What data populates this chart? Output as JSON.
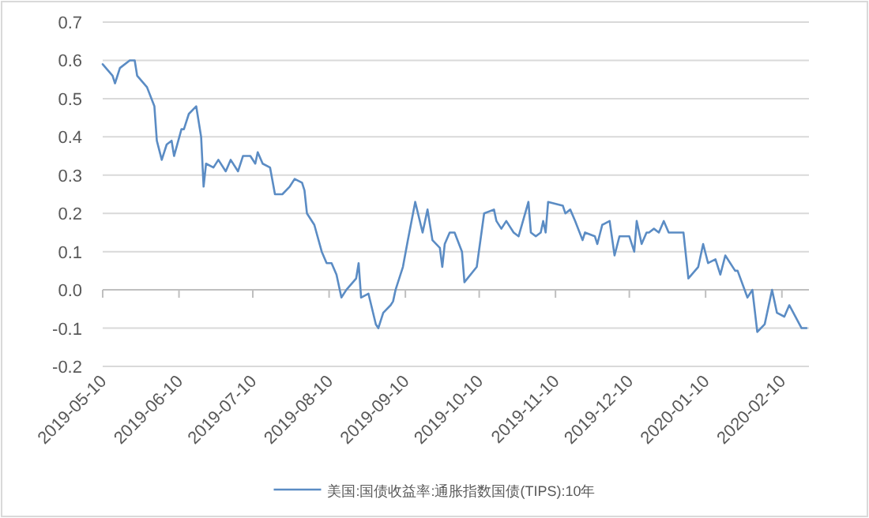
{
  "chart_data": {
    "type": "line",
    "legend": "bottom",
    "grid": "y",
    "marker": "none",
    "line_style": "solid",
    "xlim": [
      "2019-05-10",
      "2020-02-21"
    ],
    "xticks": [
      "2019-05-10",
      "2019-06-10",
      "2019-07-10",
      "2019-08-10",
      "2019-09-10",
      "2019-10-10",
      "2019-11-10",
      "2019-12-10",
      "2020-01-10",
      "2020-02-10"
    ],
    "ylim": [
      -0.2,
      0.7
    ],
    "yticks": [
      -0.2,
      -0.1,
      {
        "value": 0,
        "label": "0.0"
      },
      0.1,
      0.2,
      0.3,
      0.4,
      0.5,
      0.6,
      0.7
    ],
    "x": [
      "2019-05-10",
      "2019-05-14",
      "2019-05-15",
      "2019-05-17",
      "2019-05-21",
      "2019-05-23",
      "2019-05-24",
      "2019-05-28",
      "2019-05-31",
      "2019-06-01",
      "2019-06-03",
      "2019-06-05",
      "2019-06-07",
      "2019-06-08",
      "2019-06-11",
      "2019-06-12",
      "2019-06-14",
      "2019-06-17",
      "2019-06-19",
      "2019-06-20",
      "2019-06-21",
      "2019-06-24",
      "2019-06-26",
      "2019-06-29",
      "2019-07-01",
      "2019-07-04",
      "2019-07-06",
      "2019-07-09",
      "2019-07-11",
      "2019-07-12",
      "2019-07-14",
      "2019-07-17",
      "2019-07-19",
      "2019-07-22",
      "2019-07-25",
      "2019-07-27",
      "2019-07-30",
      "2019-07-31",
      "2019-08-01",
      "2019-08-04",
      "2019-08-07",
      "2019-08-09",
      "2019-08-11",
      "2019-08-13",
      "2019-08-15",
      "2019-08-17",
      "2019-08-21",
      "2019-08-22",
      "2019-08-23",
      "2019-08-26",
      "2019-08-29",
      "2019-08-30",
      "2019-09-01",
      "2019-09-04",
      "2019-09-05",
      "2019-09-06",
      "2019-09-09",
      "2019-09-11",
      "2019-09-14",
      "2019-09-17",
      "2019-09-19",
      "2019-09-21",
      "2019-09-24",
      "2019-09-25",
      "2019-09-26",
      "2019-09-28",
      "2019-09-30",
      "2019-10-03",
      "2019-10-04",
      "2019-10-09",
      "2019-10-12",
      "2019-10-16",
      "2019-10-17",
      "2019-10-19",
      "2019-10-21",
      "2019-10-24",
      "2019-10-26",
      "2019-10-30",
      "2019-10-31",
      "2019-11-02",
      "2019-11-04",
      "2019-11-05",
      "2019-11-06",
      "2019-11-07",
      "2019-11-13",
      "2019-11-14",
      "2019-11-16",
      "2019-11-18",
      "2019-11-21",
      "2019-11-22",
      "2019-11-26",
      "2019-11-27",
      "2019-11-29",
      "2019-12-02",
      "2019-12-04",
      "2019-12-06",
      "2019-12-10",
      "2019-12-12",
      "2019-12-13",
      "2019-12-15",
      "2019-12-17",
      "2019-12-18",
      "2019-12-20",
      "2019-12-22",
      "2019-12-24",
      "2019-12-26",
      "2019-12-28",
      "2020-01-01",
      "2020-01-03",
      "2020-01-07",
      "2020-01-09",
      "2020-01-11",
      "2020-01-14",
      "2020-01-16",
      "2020-01-18",
      "2020-01-22",
      "2020-01-23",
      "2020-01-27",
      "2020-01-29",
      "2020-01-31",
      "2020-02-03",
      "2020-02-06",
      "2020-02-08",
      "2020-02-11",
      "2020-02-13",
      "2020-02-18",
      "2020-02-20"
    ],
    "series": [
      {
        "name": "美国:国债收益率:通胀指数国债(TIPS):10年",
        "color": "#5b8cc4",
        "values": [
          0.59,
          0.56,
          0.54,
          0.58,
          0.6,
          0.6,
          0.56,
          0.53,
          0.48,
          0.39,
          0.34,
          0.38,
          0.39,
          0.35,
          0.42,
          0.42,
          0.46,
          0.48,
          0.4,
          0.27,
          0.33,
          0.32,
          0.34,
          0.31,
          0.34,
          0.31,
          0.35,
          0.35,
          0.33,
          0.36,
          0.33,
          0.32,
          0.25,
          0.25,
          0.27,
          0.29,
          0.28,
          0.26,
          0.2,
          0.17,
          0.1,
          0.07,
          0.07,
          0.04,
          -0.02,
          0.0,
          0.03,
          0.07,
          -0.02,
          -0.01,
          -0.09,
          -0.1,
          -0.06,
          -0.04,
          -0.03,
          0.0,
          0.06,
          0.13,
          0.23,
          0.15,
          0.21,
          0.13,
          0.11,
          0.06,
          0.12,
          0.15,
          0.15,
          0.1,
          0.02,
          0.06,
          0.2,
          0.21,
          0.18,
          0.16,
          0.18,
          0.15,
          0.14,
          0.23,
          0.15,
          0.14,
          0.15,
          0.18,
          0.15,
          0.23,
          0.22,
          0.2,
          0.21,
          0.18,
          0.13,
          0.15,
          0.14,
          0.12,
          0.17,
          0.18,
          0.09,
          0.14,
          0.14,
          0.1,
          0.18,
          0.12,
          0.15,
          0.15,
          0.16,
          0.15,
          0.18,
          0.15,
          0.15,
          0.15,
          0.03,
          0.06,
          0.12,
          0.07,
          0.08,
          0.04,
          0.09,
          0.05,
          0.05,
          -0.02,
          0.0,
          -0.11,
          -0.09,
          0.0,
          -0.06,
          -0.07,
          -0.04,
          -0.1,
          -0.1
        ]
      }
    ]
  }
}
